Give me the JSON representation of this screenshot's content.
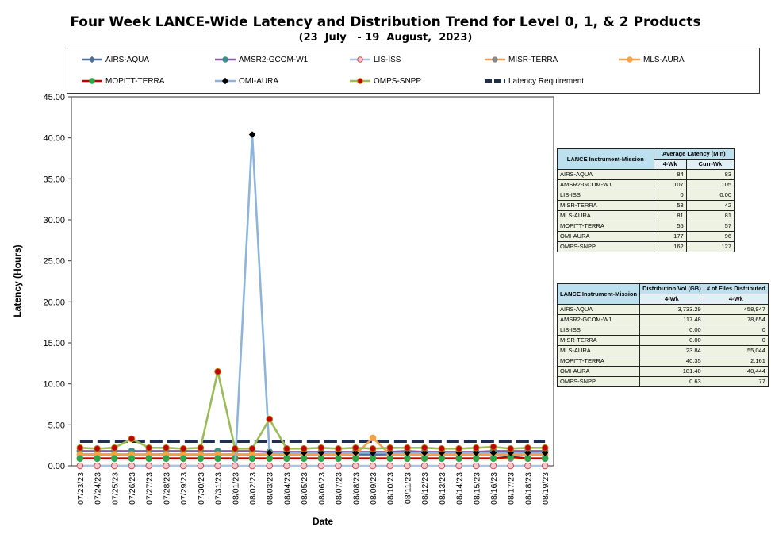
{
  "title": "Four Week LANCE-Wide Latency and Distribution Trend for Level 0, 1, & 2 Products",
  "subtitle": "(23  July   - 19  August,  2023)",
  "legend": [
    {
      "label": "AIRS-AQUA",
      "color": "#4f6f9a",
      "marker": "diamond",
      "marker_color": "#4f6f9a",
      "marker_edge": "#4f6f9a"
    },
    {
      "label": "AMSR2-GCOM-W1",
      "color": "#8e5aa6",
      "marker": "circle",
      "marker_color": "#3d8f8a",
      "marker_edge": "#3d8f8a"
    },
    {
      "label": "LIS-ISS",
      "color": "#a9c4e4",
      "marker": "circle",
      "marker_color": "#f6c6cc",
      "marker_edge": "#c0504d"
    },
    {
      "label": "MISR-TERRA",
      "color": "#f39a56",
      "marker": "circle",
      "marker_color": "#8a8a8a",
      "marker_edge": "#8a8a8a"
    },
    {
      "label": "MLS-AURA",
      "color": "#f5a24a",
      "marker": "circle",
      "marker_color": "#f5a24a",
      "marker_edge": "#f5a24a"
    },
    {
      "label": "MOPITT-TERRA",
      "color": "#c00000",
      "marker": "circle",
      "marker_color": "#2da84a",
      "marker_edge": "#2da84a"
    },
    {
      "label": "OMI-AURA",
      "color": "#8eb4dc",
      "marker": "diamond",
      "marker_color": "#000000",
      "marker_edge": "#000000"
    },
    {
      "label": "OMPS-SNPP",
      "color": "#9bbb59",
      "marker": "circle",
      "marker_color": "#c00000",
      "marker_edge": "#c07000"
    },
    {
      "label": "Latency Requirement",
      "color": "#1f2f4f",
      "marker": "dash",
      "marker_color": "#1f2f4f",
      "marker_edge": "#1f2f4f"
    }
  ],
  "chart_data": {
    "type": "line",
    "title": "Four Week LANCE-Wide Latency and Distribution Trend for Level 0, 1, & 2 Products",
    "xlabel": "Date",
    "ylabel": "Latency (Hours)",
    "ylim": [
      0,
      45
    ],
    "y_ticks": [
      "0.00",
      "5.00",
      "10.00",
      "15.00",
      "20.00",
      "25.00",
      "30.00",
      "35.00",
      "40.00",
      "45.00"
    ],
    "grid": false,
    "legend_position": "top",
    "categories": [
      "07/23/23",
      "07/24/23",
      "07/25/23",
      "07/26/23",
      "07/27/23",
      "07/28/23",
      "07/29/23",
      "07/30/23",
      "07/31/23",
      "08/01/23",
      "08/02/23",
      "08/03/23",
      "08/04/23",
      "08/05/23",
      "08/06/23",
      "08/07/23",
      "08/08/23",
      "08/09/23",
      "08/10/23",
      "08/11/23",
      "08/12/23",
      "08/13/23",
      "08/14/23",
      "08/15/23",
      "08/16/23",
      "08/17/23",
      "08/18/23",
      "08/19/23"
    ],
    "series": [
      {
        "name": "Latency Requirement",
        "values": [
          3.0,
          3.0,
          3.0,
          3.0,
          3.0,
          3.0,
          3.0,
          3.0,
          3.0,
          3.0,
          3.0,
          3.0,
          3.0,
          3.0,
          3.0,
          3.0,
          3.0,
          3.0,
          3.0,
          3.0,
          3.0,
          3.0,
          3.0,
          3.0,
          3.0,
          3.0,
          3.0,
          3.0
        ]
      },
      {
        "name": "AMSR2-GCOM-W1",
        "values": [
          1.8,
          1.8,
          1.8,
          1.8,
          1.8,
          1.8,
          1.8,
          1.8,
          1.8,
          1.8,
          1.8,
          1.7,
          1.7,
          1.7,
          1.7,
          1.7,
          1.7,
          1.7,
          1.7,
          1.8,
          1.7,
          1.7,
          1.7,
          1.7,
          1.8,
          1.8,
          1.8,
          1.8
        ]
      },
      {
        "name": "AIRS-AQUA",
        "values": [
          1.4,
          1.4,
          1.4,
          1.4,
          1.4,
          1.4,
          1.4,
          1.4,
          1.4,
          1.4,
          1.4,
          1.4,
          1.4,
          1.4,
          1.4,
          1.4,
          1.4,
          1.4,
          1.4,
          1.4,
          1.4,
          1.4,
          1.4,
          1.4,
          1.4,
          1.4,
          1.4,
          1.4
        ]
      },
      {
        "name": "MISR-TERRA",
        "values": [
          0.9,
          0.9,
          0.9,
          0.9,
          0.9,
          0.9,
          0.9,
          0.9,
          0.9,
          0.9,
          0.9,
          0.9,
          0.9,
          0.9,
          0.9,
          0.9,
          0.9,
          0.9,
          0.9,
          0.9,
          0.9,
          0.9,
          0.9,
          0.9,
          0.9,
          0.9,
          0.9,
          0.9
        ]
      },
      {
        "name": "MLS-AURA",
        "values": [
          1.4,
          1.4,
          1.4,
          1.4,
          1.4,
          1.4,
          1.4,
          1.4,
          1.4,
          1.4,
          1.4,
          1.4,
          1.4,
          1.4,
          1.4,
          1.4,
          1.4,
          3.4,
          1.4,
          1.4,
          1.4,
          1.4,
          1.4,
          1.4,
          1.4,
          1.4,
          1.4,
          1.4
        ]
      },
      {
        "name": "MOPITT-TERRA",
        "values": [
          0.9,
          0.9,
          0.9,
          0.9,
          0.9,
          0.9,
          0.9,
          0.9,
          0.9,
          0.9,
          0.9,
          0.9,
          0.9,
          0.9,
          0.9,
          0.9,
          0.9,
          0.9,
          0.9,
          0.9,
          0.9,
          0.9,
          0.9,
          0.9,
          0.9,
          1.1,
          0.9,
          0.9
        ]
      },
      {
        "name": "OMI-AURA",
        "values": [
          0.0,
          0.0,
          0.0,
          0.0,
          0.0,
          0.0,
          0.0,
          0.0,
          0.0,
          0.0,
          40.4,
          1.6,
          1.6,
          1.6,
          1.6,
          1.6,
          1.6,
          1.6,
          1.6,
          1.6,
          1.6,
          1.6,
          1.6,
          1.6,
          1.6,
          1.6,
          1.6,
          1.6
        ]
      },
      {
        "name": "OMPS-SNPP",
        "values": [
          2.2,
          2.1,
          2.2,
          3.3,
          2.2,
          2.2,
          2.1,
          2.2,
          11.5,
          2.1,
          2.1,
          5.7,
          2.1,
          2.1,
          2.2,
          2.1,
          2.2,
          2.1,
          2.2,
          2.2,
          2.2,
          2.1,
          2.1,
          2.2,
          2.3,
          2.1,
          2.2,
          2.2
        ]
      },
      {
        "name": "LIS-ISS",
        "values": [
          0.0,
          0.0,
          0.0,
          0.0,
          0.0,
          0.0,
          0.0,
          0.0,
          0.0,
          0.0,
          0.0,
          0.0,
          0.0,
          0.0,
          0.0,
          0.0,
          0.0,
          0.0,
          0.0,
          0.0,
          0.0,
          0.0,
          0.0,
          0.0,
          0.0,
          0.0,
          0.0,
          0.0
        ]
      }
    ]
  },
  "latency_table": {
    "header_col1": "LANCE Instrument-Mission",
    "header_col2": "Average Latency (Min)",
    "sub_4wk": "4-Wk",
    "sub_curr": "Curr-Wk",
    "rows": [
      {
        "name": "AIRS-AQUA",
        "wk4": "84",
        "curr": "83"
      },
      {
        "name": "AMSR2-GCOM-W1",
        "wk4": "107",
        "curr": "105"
      },
      {
        "name": "LIS-ISS",
        "wk4": "0",
        "curr": "0.00"
      },
      {
        "name": "MISR-TERRA",
        "wk4": "53",
        "curr": "42"
      },
      {
        "name": "MLS-AURA",
        "wk4": "81",
        "curr": "81"
      },
      {
        "name": "MOPITT-TERRA",
        "wk4": "55",
        "curr": "57"
      },
      {
        "name": "OMI-AURA",
        "wk4": "177",
        "curr": "96"
      },
      {
        "name": "OMPS-SNPP",
        "wk4": "162",
        "curr": "127"
      }
    ]
  },
  "distribution_table": {
    "header_col1": "LANCE Instrument-Mission",
    "header_col2": "Distribution Vol (GB)",
    "header_col3": "# of Files Distributed",
    "sub_4wk_a": "4-Wk",
    "sub_4wk_b": "4-Wk",
    "rows": [
      {
        "name": "AIRS-AQUA",
        "vol": "3,733.29",
        "files": "458,947"
      },
      {
        "name": "AMSR2-GCOM-W1",
        "vol": "117.48",
        "files": "78,654"
      },
      {
        "name": "LIS-ISS",
        "vol": "0.00",
        "files": "0"
      },
      {
        "name": "MISR-TERRA",
        "vol": "0.00",
        "files": "0"
      },
      {
        "name": "MLS-AURA",
        "vol": "23.84",
        "files": "55,044"
      },
      {
        "name": "MOPITT-TERRA",
        "vol": "40.35",
        "files": "2,161"
      },
      {
        "name": "OMI-AURA",
        "vol": "181.40",
        "files": "40,444"
      },
      {
        "name": "OMPS-SNPP",
        "vol": "0.63",
        "files": "77"
      }
    ]
  }
}
